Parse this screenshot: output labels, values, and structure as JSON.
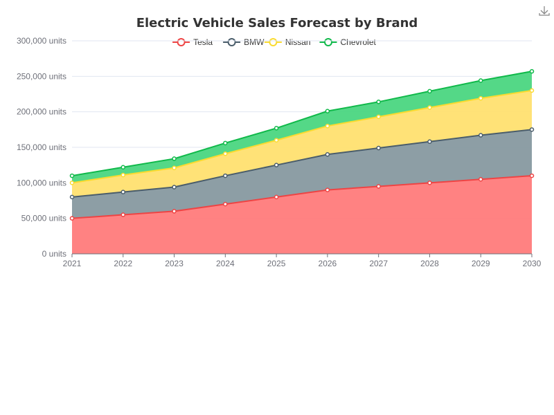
{
  "toolbar": {
    "download_icon": "download-icon"
  },
  "chart_data": {
    "type": "area",
    "stacked": true,
    "title": "Electric Vehicle Sales Forecast by Brand",
    "xlabel": "",
    "ylabel": "",
    "categories": [
      "2021",
      "2022",
      "2023",
      "2024",
      "2025",
      "2026",
      "2027",
      "2028",
      "2029",
      "2030"
    ],
    "y_unit_suffix": " units",
    "ylim": [
      0,
      300000
    ],
    "y_ticks": [
      "0 units",
      "50,000 units",
      "100,000 units",
      "150,000 units",
      "200,000 units",
      "250,000 units",
      "300,000 units"
    ],
    "grid": true,
    "legend_position": "top",
    "series": [
      {
        "name": "Tesla",
        "color": "#ee4444",
        "fill": "#ff7b7b",
        "values": [
          50000,
          55000,
          60000,
          70000,
          80000,
          90000,
          95000,
          100000,
          105000,
          110000
        ]
      },
      {
        "name": "BMW",
        "color": "#4a5d6b",
        "fill": "#8799a0",
        "values": [
          30000,
          32000,
          34000,
          40000,
          45000,
          50000,
          54000,
          58000,
          62000,
          65000
        ]
      },
      {
        "name": "Nissan",
        "color": "#fadb2f",
        "fill": "#ffe070",
        "values": [
          20000,
          24000,
          27000,
          31000,
          35000,
          40000,
          44000,
          48000,
          52000,
          55000
        ]
      },
      {
        "name": "Chevrolet",
        "color": "#10b94a",
        "fill": "#4bd681",
        "values": [
          10000,
          11000,
          13000,
          15000,
          17000,
          21000,
          21000,
          23000,
          25000,
          27000
        ]
      }
    ]
  }
}
